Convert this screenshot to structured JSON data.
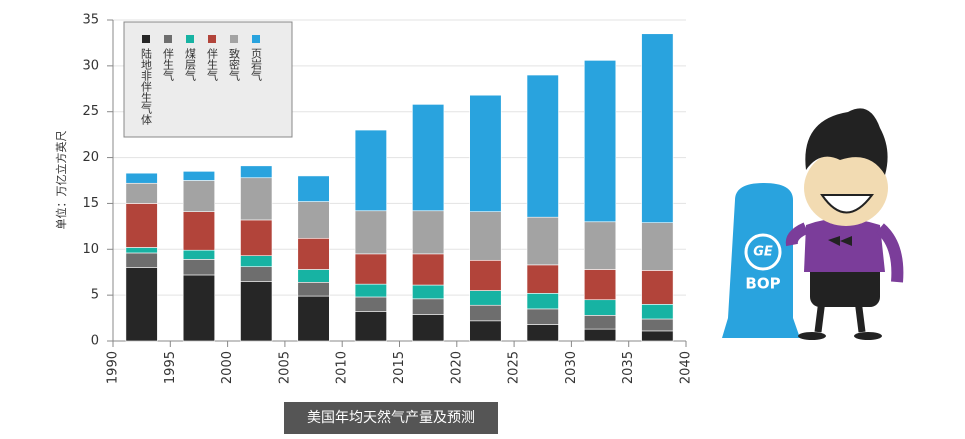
{
  "chart_data": {
    "type": "stacked_bar",
    "ylabel": "单位：万亿立方英尺",
    "caption": "美国年均天然气产量及预测",
    "x": [
      1992.5,
      1997.5,
      2002.5,
      2007.5,
      2012.5,
      2017.5,
      2022.5,
      2027.5,
      2032.5,
      2037.5
    ],
    "xlim": [
      1990,
      2040
    ],
    "xticks": [
      1990,
      1995,
      2000,
      2005,
      2010,
      2015,
      2020,
      2025,
      2030,
      2035,
      2040
    ],
    "ylim": [
      0,
      35
    ],
    "yticks": [
      0,
      5,
      10,
      15,
      20,
      25,
      30,
      35
    ],
    "grid": true,
    "legend": "top-left",
    "series": [
      {
        "name": "陆地非伴生气体",
        "color": "#262626",
        "values": [
          8.0,
          7.2,
          6.5,
          4.9,
          3.2,
          2.9,
          2.2,
          1.8,
          1.3,
          1.1
        ]
      },
      {
        "name": "伴生气",
        "color": "#6e6e6e",
        "values": [
          1.6,
          1.7,
          1.6,
          1.5,
          1.6,
          1.7,
          1.7,
          1.7,
          1.5,
          1.3
        ]
      },
      {
        "name": "煤层气",
        "color": "#17b3a3",
        "values": [
          0.6,
          1.0,
          1.2,
          1.4,
          1.4,
          1.5,
          1.6,
          1.7,
          1.7,
          1.6
        ]
      },
      {
        "name": "伴生气",
        "color": "#b2443a",
        "values": [
          4.8,
          4.2,
          3.9,
          3.4,
          3.3,
          3.4,
          3.3,
          3.1,
          3.3,
          3.7
        ]
      },
      {
        "name": "致密气",
        "color": "#a3a3a3",
        "values": [
          2.2,
          3.4,
          4.6,
          4.0,
          4.7,
          4.7,
          5.3,
          5.2,
          5.2,
          5.2
        ]
      },
      {
        "name": "页岩气",
        "color": "#29a3de",
        "values": [
          1.1,
          1.0,
          1.3,
          2.8,
          8.8,
          11.6,
          12.7,
          15.5,
          17.6,
          20.6
        ]
      }
    ]
  },
  "illustration": {
    "pillar_text": "BOP",
    "logo_text": "GE"
  }
}
